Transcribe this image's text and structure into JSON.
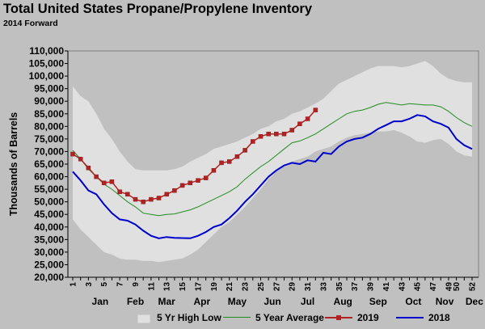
{
  "title": "Total United States Propane/Propylene Inventory",
  "subtitle": "2014 Forward",
  "colors": {
    "background": "#c0c0c0",
    "band": "#e0e0e0",
    "avg": "#228b22",
    "y2019": "#b22222",
    "y2018": "#0000cd"
  },
  "chart_data": {
    "type": "line",
    "title": "Total United States Propane/Propylene Inventory",
    "subtitle": "2014 Forward",
    "ylabel": "Thousands of Barrels",
    "xlabel": "",
    "ylim": [
      20000,
      110000
    ],
    "ytick_step": 5000,
    "yticks": [
      "20,000",
      "25,000",
      "30,000",
      "35,000",
      "40,000",
      "45,000",
      "50,000",
      "55,000",
      "60,000",
      "65,000",
      "70,000",
      "75,000",
      "80,000",
      "85,000",
      "90,000",
      "95,000",
      "100,000",
      "105,000",
      "110,000"
    ],
    "x": [
      1,
      2,
      3,
      4,
      5,
      6,
      7,
      8,
      9,
      10,
      11,
      12,
      13,
      14,
      15,
      16,
      17,
      18,
      19,
      20,
      21,
      22,
      23,
      24,
      25,
      26,
      27,
      28,
      29,
      30,
      31,
      32,
      33,
      34,
      35,
      36,
      37,
      38,
      39,
      40,
      41,
      42,
      43,
      44,
      45,
      46,
      47,
      48,
      49,
      50,
      51,
      52
    ],
    "xtick_labels": [
      "1",
      "3",
      "5",
      "7",
      "9",
      "11",
      "13",
      "15",
      "17",
      "19",
      "21",
      "23",
      "25",
      "27",
      "29",
      "31",
      "33",
      "35",
      "37",
      "39",
      "41",
      "43",
      "45",
      "47",
      "49",
      "50",
      "52"
    ],
    "months": [
      {
        "label": "Jan",
        "center": 4.5
      },
      {
        "label": "Feb",
        "center": 9
      },
      {
        "label": "Mar",
        "center": 13
      },
      {
        "label": "Apr",
        "center": 17.5
      },
      {
        "label": "May",
        "center": 22
      },
      {
        "label": "Jun",
        "center": 26.5
      },
      {
        "label": "Jul",
        "center": 31
      },
      {
        "label": "Aug",
        "center": 35.5
      },
      {
        "label": "Sep",
        "center": 40
      },
      {
        "label": "Oct",
        "center": 44.5
      },
      {
        "label": "Nov",
        "center": 48.5
      },
      {
        "label": "Dec",
        "center": 52.3
      }
    ],
    "grid": false,
    "legend_position": "bottom",
    "series": [
      {
        "name": "5 Yr High Low",
        "kind": "band",
        "high": [
          96000,
          92000,
          90000,
          85000,
          79000,
          75000,
          70000,
          66000,
          63000,
          62500,
          62500,
          62500,
          62500,
          63000,
          64000,
          66000,
          67500,
          69000,
          71000,
          72000,
          73000,
          74000,
          75500,
          77000,
          79000,
          80000,
          82000,
          83000,
          85000,
          86000,
          87500,
          89000,
          91000,
          94000,
          97000,
          98500,
          100000,
          101500,
          103000,
          104000,
          104000,
          104000,
          103500,
          104000,
          105000,
          106000,
          104000,
          101000,
          99000,
          98000,
          97500,
          97500
        ],
        "low": [
          43000,
          39000,
          36000,
          33000,
          30000,
          29000,
          27500,
          27000,
          27000,
          26500,
          26500,
          26000,
          26500,
          27000,
          27500,
          29000,
          31000,
          34000,
          37000,
          40000,
          42000,
          45000,
          48000,
          51500,
          55000,
          59000,
          62000,
          64500,
          66000,
          67000,
          68000,
          70000,
          71000,
          72000,
          74000,
          75500,
          76500,
          77000,
          77500,
          78000,
          78000,
          78500,
          77500,
          76000,
          74000,
          73500,
          74500,
          75000,
          73000,
          70000,
          68500,
          68000
        ]
      },
      {
        "name": "5 Year Average",
        "kind": "line",
        "values": [
          70500,
          67000,
          63000,
          60000,
          57000,
          55000,
          52500,
          50000,
          48000,
          45500,
          45000,
          44500,
          45000,
          45200,
          46000,
          46800,
          48000,
          49500,
          51000,
          52500,
          54000,
          56000,
          59000,
          61500,
          64000,
          66000,
          68500,
          71000,
          73500,
          74200,
          75500,
          77000,
          79000,
          81000,
          83000,
          85000,
          86000,
          86500,
          87500,
          88800,
          89500,
          89000,
          88500,
          89000,
          88800,
          88500,
          88500,
          87800,
          86000,
          83500,
          81500,
          80000
        ]
      },
      {
        "name": "2019",
        "kind": "line-markers",
        "values": [
          69000,
          67000,
          63500,
          60000,
          57500,
          58000,
          54000,
          53000,
          51000,
          50000,
          51000,
          51500,
          53000,
          54500,
          56500,
          57500,
          58500,
          59500,
          62500,
          65500,
          66000,
          68000,
          70500,
          74000,
          76000,
          77000,
          77000,
          77000,
          78500,
          81000,
          83000,
          86500,
          null,
          null,
          null,
          null,
          null,
          null,
          null,
          null,
          null,
          null,
          null,
          null,
          null,
          null,
          null,
          null,
          null,
          null,
          null,
          null
        ]
      },
      {
        "name": "2018",
        "kind": "line",
        "values": [
          62000,
          58500,
          54500,
          53000,
          49000,
          45500,
          43000,
          42500,
          41000,
          38500,
          36500,
          35500,
          36000,
          35700,
          35600,
          35500,
          36500,
          38000,
          40000,
          41000,
          43500,
          46500,
          50000,
          53000,
          56500,
          60000,
          62500,
          64500,
          65500,
          65000,
          66500,
          66000,
          69500,
          69000,
          72000,
          74000,
          75000,
          75500,
          77000,
          79000,
          80500,
          82000,
          82000,
          83000,
          84500,
          84000,
          82000,
          81000,
          79500,
          75000,
          72500,
          71000
        ]
      }
    ]
  }
}
